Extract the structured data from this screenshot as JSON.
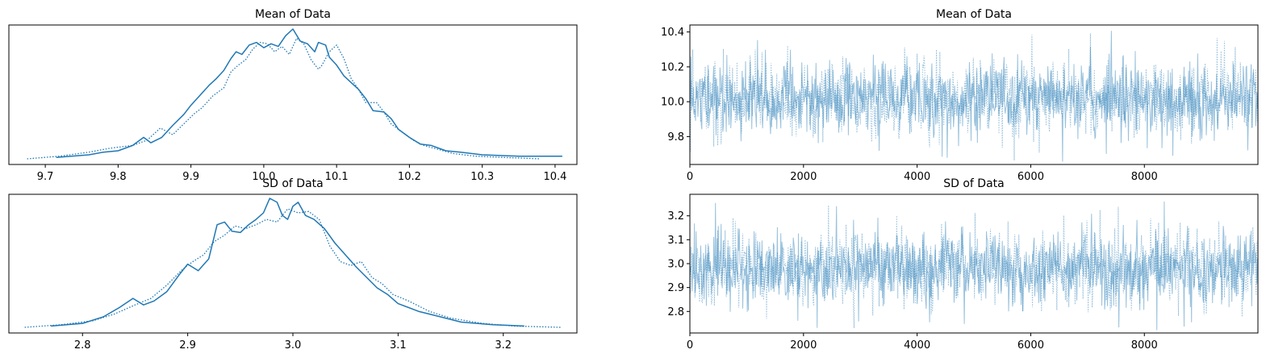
{
  "colors": {
    "line": "#1f77b4",
    "frame": "#000000",
    "background": "#ffffff"
  },
  "chart_data": [
    {
      "type": "line",
      "chart_kind": "density",
      "title": "Mean of Data",
      "xlabel": "",
      "ylabel": "",
      "xlim": [
        9.65,
        10.43
      ],
      "xticks": [
        "9.7",
        "9.8",
        "9.9",
        "10.0",
        "10.1",
        "10.2",
        "10.3",
        "10.4"
      ],
      "y_ticks_shown": false,
      "series": [
        {
          "line_style": "solid",
          "x": [
            9.715,
            9.76,
            9.78,
            9.8,
            9.82,
            9.835,
            9.845,
            9.86,
            9.875,
            9.89,
            9.9,
            9.91,
            9.925,
            9.935,
            9.945,
            9.955,
            9.962,
            9.97,
            9.98,
            9.99,
            10.0,
            10.01,
            10.02,
            10.03,
            10.04,
            10.05,
            10.06,
            10.07,
            10.075,
            10.085,
            10.09,
            10.1,
            10.11,
            10.12,
            10.13,
            10.14,
            10.15,
            10.165,
            10.175,
            10.185,
            10.2,
            10.215,
            10.23,
            10.25,
            10.27,
            10.3,
            10.35,
            10.41
          ],
          "y": [
            0.01,
            0.03,
            0.05,
            0.06,
            0.1,
            0.16,
            0.12,
            0.16,
            0.25,
            0.33,
            0.4,
            0.46,
            0.55,
            0.6,
            0.66,
            0.75,
            0.8,
            0.78,
            0.85,
            0.87,
            0.83,
            0.86,
            0.84,
            0.92,
            0.97,
            0.88,
            0.86,
            0.8,
            0.87,
            0.85,
            0.76,
            0.7,
            0.62,
            0.57,
            0.52,
            0.45,
            0.36,
            0.35,
            0.3,
            0.22,
            0.16,
            0.11,
            0.1,
            0.06,
            0.05,
            0.03,
            0.02,
            0.02
          ]
        },
        {
          "line_style": "dotted",
          "x": [
            9.675,
            9.72,
            9.76,
            9.79,
            9.82,
            9.84,
            9.858,
            9.875,
            9.89,
            9.905,
            9.915,
            9.93,
            9.945,
            9.955,
            9.965,
            9.975,
            9.985,
            9.995,
            10.005,
            10.015,
            10.025,
            10.035,
            10.045,
            10.055,
            10.065,
            10.075,
            10.08,
            10.09,
            10.1,
            10.11,
            10.12,
            10.13,
            10.14,
            10.155,
            10.165,
            10.175,
            10.19,
            10.205,
            10.22,
            10.24,
            10.26,
            10.29,
            10.33,
            10.38
          ],
          "y": [
            0.0,
            0.02,
            0.05,
            0.08,
            0.1,
            0.14,
            0.23,
            0.18,
            0.26,
            0.34,
            0.38,
            0.47,
            0.53,
            0.65,
            0.7,
            0.74,
            0.82,
            0.87,
            0.86,
            0.8,
            0.84,
            0.78,
            0.9,
            0.86,
            0.74,
            0.67,
            0.7,
            0.8,
            0.85,
            0.75,
            0.6,
            0.52,
            0.42,
            0.42,
            0.35,
            0.26,
            0.2,
            0.14,
            0.1,
            0.07,
            0.04,
            0.02,
            0.01,
            0.0
          ]
        }
      ]
    },
    {
      "type": "line",
      "chart_kind": "trace",
      "title": "Mean of Data",
      "xlabel": "",
      "ylabel": "",
      "xlim": [
        0,
        9999
      ],
      "ylim": [
        9.64,
        10.44
      ],
      "xticks": [
        "0",
        "2000",
        "4000",
        "6000",
        "8000"
      ],
      "yticks": [
        "9.8",
        "10.0",
        "10.2",
        "10.4"
      ],
      "samples": 10000,
      "center": 10.02,
      "spread": 0.12,
      "series": [
        {
          "line_style": "solid",
          "opacity": 0.45
        },
        {
          "line_style": "dotted",
          "opacity": 0.45
        }
      ]
    },
    {
      "type": "line",
      "chart_kind": "density",
      "title": "SD of Data",
      "xlabel": "",
      "ylabel": "",
      "xlim": [
        2.73,
        3.27
      ],
      "xticks": [
        "2.8",
        "2.9",
        "3.0",
        "3.1",
        "3.2"
      ],
      "y_ticks_shown": false,
      "series": [
        {
          "line_style": "solid",
          "x": [
            2.77,
            2.8,
            2.82,
            2.835,
            2.848,
            2.858,
            2.868,
            2.88,
            2.892,
            2.9,
            2.91,
            2.92,
            2.928,
            2.935,
            2.942,
            2.95,
            2.958,
            2.965,
            2.972,
            2.978,
            2.985,
            2.99,
            2.995,
            3.0,
            3.005,
            3.012,
            3.02,
            3.03,
            3.04,
            3.05,
            3.06,
            3.07,
            3.08,
            3.09,
            3.1,
            3.12,
            3.14,
            3.16,
            3.19,
            3.22
          ],
          "y": [
            0.01,
            0.03,
            0.08,
            0.15,
            0.22,
            0.17,
            0.2,
            0.27,
            0.4,
            0.48,
            0.43,
            0.52,
            0.78,
            0.8,
            0.73,
            0.72,
            0.78,
            0.82,
            0.87,
            0.98,
            0.95,
            0.85,
            0.82,
            0.92,
            0.95,
            0.85,
            0.82,
            0.75,
            0.64,
            0.55,
            0.46,
            0.38,
            0.3,
            0.25,
            0.18,
            0.12,
            0.08,
            0.04,
            0.02,
            0.01
          ]
        },
        {
          "line_style": "dotted",
          "x": [
            2.745,
            2.78,
            2.81,
            2.83,
            2.85,
            2.865,
            2.88,
            2.895,
            2.905,
            2.915,
            2.925,
            2.935,
            2.945,
            2.955,
            2.965,
            2.975,
            2.985,
            2.995,
            3.005,
            3.015,
            3.025,
            3.035,
            3.045,
            3.055,
            3.065,
            3.075,
            3.085,
            3.095,
            3.11,
            3.13,
            3.15,
            3.18,
            3.21,
            3.255
          ],
          "y": [
            0.0,
            0.02,
            0.05,
            0.1,
            0.17,
            0.22,
            0.32,
            0.44,
            0.5,
            0.55,
            0.65,
            0.7,
            0.77,
            0.75,
            0.78,
            0.82,
            0.8,
            0.9,
            0.87,
            0.88,
            0.82,
            0.62,
            0.5,
            0.47,
            0.5,
            0.38,
            0.33,
            0.25,
            0.2,
            0.12,
            0.07,
            0.03,
            0.01,
            0.0
          ]
        }
      ]
    },
    {
      "type": "line",
      "chart_kind": "trace",
      "title": "SD of Data",
      "xlabel": "",
      "ylabel": "",
      "xlim": [
        0,
        9999
      ],
      "ylim": [
        2.71,
        3.29
      ],
      "xticks": [
        "0",
        "2000",
        "4000",
        "6000",
        "8000"
      ],
      "yticks": [
        "2.8",
        "2.9",
        "3.0",
        "3.1",
        "3.2"
      ],
      "samples": 10000,
      "center": 2.98,
      "spread": 0.09,
      "series": [
        {
          "line_style": "solid",
          "opacity": 0.45
        },
        {
          "line_style": "dotted",
          "opacity": 0.45
        }
      ]
    }
  ]
}
